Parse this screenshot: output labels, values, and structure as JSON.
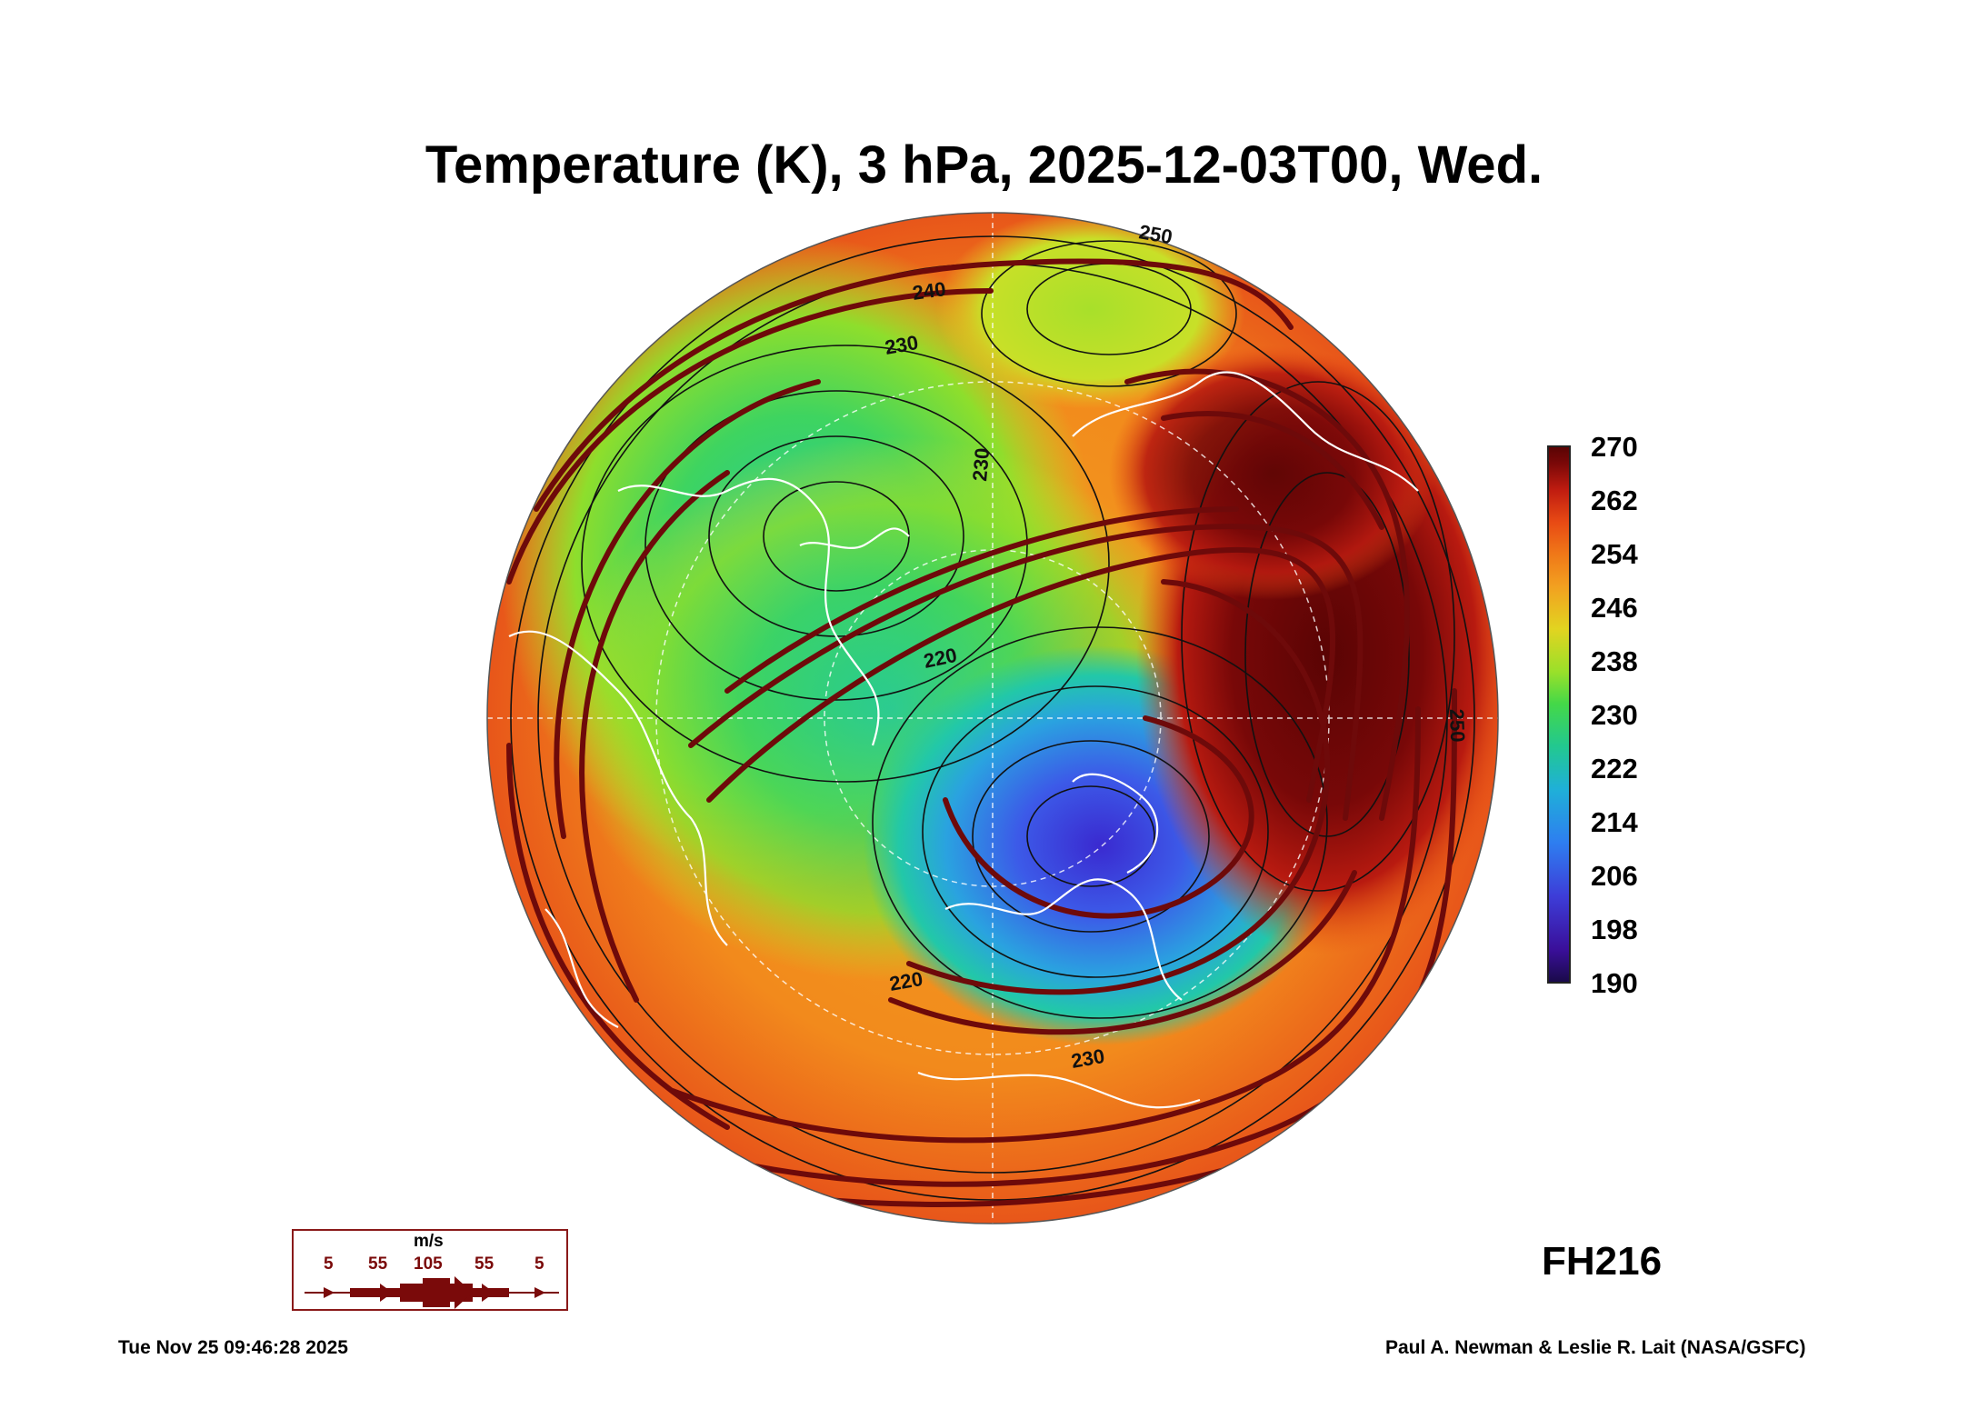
{
  "title": "Temperature (K), 3 hPa, 2025-12-03T00, Wed.",
  "colorbar": {
    "labels": [
      "270",
      "262",
      "254",
      "246",
      "238",
      "230",
      "222",
      "214",
      "206",
      "198",
      "190"
    ]
  },
  "contour_labels": [
    "250",
    "240",
    "230",
    "230",
    "220",
    "220",
    "230",
    "250"
  ],
  "wind_legend": {
    "unit": "m/s",
    "values": [
      "5",
      "55",
      "105",
      "55",
      "5"
    ]
  },
  "forecast_hour": "FH216",
  "timestamp": "Tue Nov 25 09:46:28 2025",
  "credit": "Paul A. Newman & Leslie R. Lait (NASA/GSFC)"
}
